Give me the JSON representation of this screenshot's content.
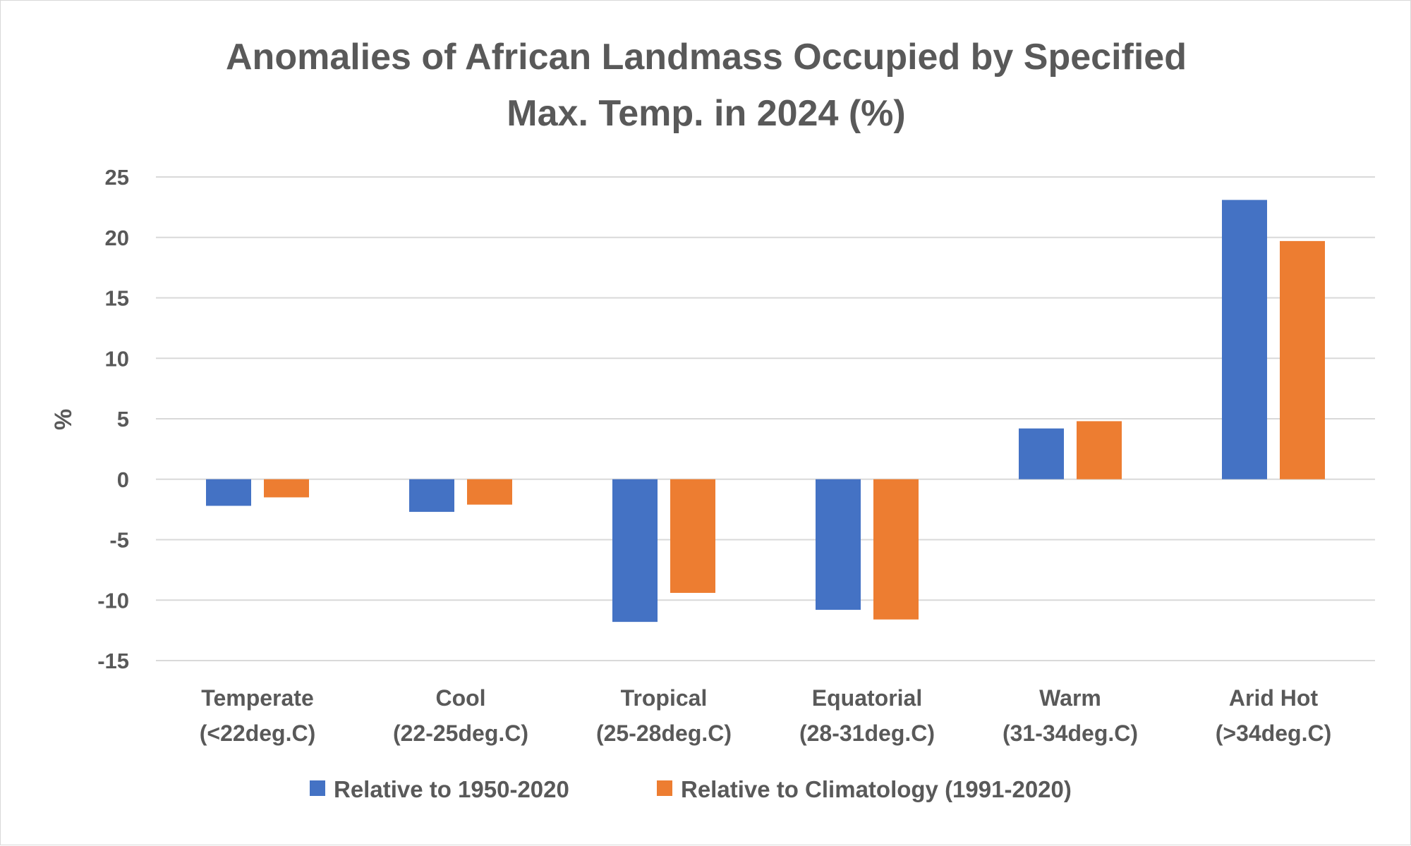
{
  "chart_data": {
    "type": "bar",
    "title": [
      "Anomalies of African Landmass Occupied by Specified",
      "Max. Temp. in 2024 (%)"
    ],
    "ylabel": "%",
    "xlabel": "",
    "ylim": [
      -15,
      25
    ],
    "yticks": [
      25,
      20,
      15,
      10,
      5,
      0,
      -5,
      -10,
      -15
    ],
    "yticks_labels": [
      "25",
      "20",
      "15",
      "10",
      "5",
      "0",
      "-5",
      "-10",
      "-15"
    ],
    "grid": true,
    "legend_position": "bottom",
    "categories": [
      [
        "Temperate",
        "(<22deg.C)"
      ],
      [
        "Cool",
        "(22-25deg.C)"
      ],
      [
        "Tropical",
        "(25-28deg.C)"
      ],
      [
        "Equatorial",
        "(28-31deg.C)"
      ],
      [
        "Warm",
        "(31-34deg.C)"
      ],
      [
        "Arid Hot",
        "(>34deg.C)"
      ]
    ],
    "series": [
      {
        "name": "Relative to 1950-2020",
        "color": "#4472c4",
        "values": [
          -2.2,
          -2.7,
          -11.8,
          -10.8,
          4.2,
          23.1
        ]
      },
      {
        "name": "Relative to Climatology (1991-2020)",
        "color": "#ed7d31",
        "values": [
          -1.5,
          -2.1,
          -9.4,
          -11.6,
          4.8,
          19.7
        ]
      }
    ]
  }
}
